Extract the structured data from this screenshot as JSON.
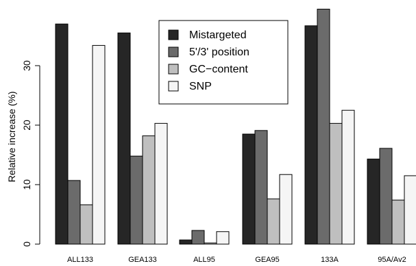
{
  "chart_data": {
    "type": "bar",
    "title": "",
    "xlabel": "",
    "ylabel": "Relative increase (%)",
    "ylim": [
      0,
      40
    ],
    "yticks": [
      0,
      10,
      20,
      30
    ],
    "grid": false,
    "legend_position": "top-center",
    "categories": [
      "ALL133",
      "GEA133",
      "ALL95",
      "GEA95",
      "133A",
      "95A/Av2"
    ],
    "series": [
      {
        "name": "Mistargeted",
        "color": "#262626",
        "values": [
          37.0,
          35.5,
          0.7,
          18.5,
          36.7,
          14.3
        ]
      },
      {
        "name": "5'/3' position",
        "color": "#6b6b6b",
        "values": [
          10.7,
          14.8,
          2.3,
          19.1,
          39.5,
          16.1
        ]
      },
      {
        "name": "GC−content",
        "color": "#bfbfbf",
        "values": [
          6.6,
          18.2,
          0.2,
          7.6,
          20.3,
          7.4
        ]
      },
      {
        "name": "SNP",
        "color": "#f5f5f5",
        "values": [
          33.4,
          20.3,
          2.1,
          11.7,
          22.5,
          11.5
        ]
      }
    ]
  }
}
